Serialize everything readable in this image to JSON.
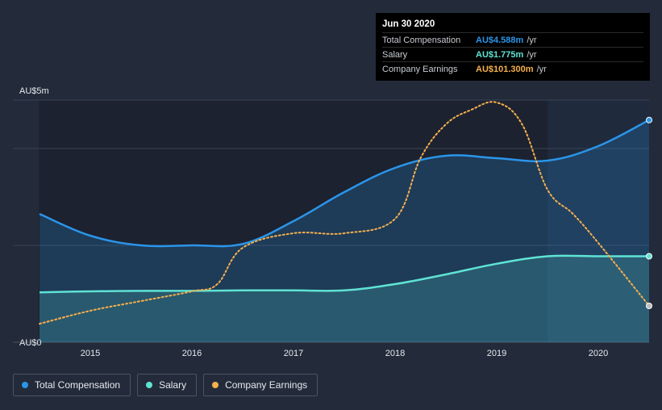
{
  "chart_data": {
    "type": "area",
    "x_ticks": [
      "2015",
      "2016",
      "2017",
      "2018",
      "2019",
      "2020"
    ],
    "y_ticks": [
      {
        "label": "AU$5m",
        "value": 5
      },
      {
        "label": "AU$0",
        "value": 0
      }
    ],
    "ylim": [
      0,
      5
    ],
    "grid": true,
    "series": [
      {
        "name": "Total Compensation",
        "color": "#2b95e9",
        "points": [
          [
            2014.5,
            2.65
          ],
          [
            2015.0,
            2.2
          ],
          [
            2015.5,
            2.0
          ],
          [
            2016.0,
            2.0
          ],
          [
            2016.5,
            2.03
          ],
          [
            2017.0,
            2.5
          ],
          [
            2017.5,
            3.1
          ],
          [
            2018.0,
            3.6
          ],
          [
            2018.5,
            3.85
          ],
          [
            2019.0,
            3.8
          ],
          [
            2019.5,
            3.75
          ],
          [
            2020.0,
            4.05
          ],
          [
            2020.5,
            4.588
          ]
        ]
      },
      {
        "name": "Salary",
        "color": "#5fe3d4",
        "points": [
          [
            2014.5,
            1.03
          ],
          [
            2015.0,
            1.05
          ],
          [
            2015.5,
            1.06
          ],
          [
            2016.0,
            1.06
          ],
          [
            2016.5,
            1.07
          ],
          [
            2017.0,
            1.07
          ],
          [
            2017.5,
            1.07
          ],
          [
            2018.0,
            1.2
          ],
          [
            2018.5,
            1.4
          ],
          [
            2019.0,
            1.62
          ],
          [
            2019.5,
            1.775
          ],
          [
            2020.0,
            1.775
          ],
          [
            2020.5,
            1.775
          ]
        ]
      },
      {
        "name": "Company Earnings",
        "color": "#f5b04d",
        "negative_color": "#e84a5f",
        "points": [
          [
            2014.5,
            0.38
          ],
          [
            2015.0,
            0.65
          ],
          [
            2015.5,
            0.85
          ],
          [
            2016.0,
            1.05
          ],
          [
            2016.25,
            1.2
          ],
          [
            2016.5,
            1.95
          ],
          [
            2017.0,
            2.25
          ],
          [
            2017.5,
            2.25
          ],
          [
            2018.0,
            2.55
          ],
          [
            2018.25,
            3.8
          ],
          [
            2018.5,
            4.5
          ],
          [
            2018.75,
            4.8
          ],
          [
            2019.0,
            4.95
          ],
          [
            2019.25,
            4.5
          ],
          [
            2019.5,
            3.15
          ],
          [
            2019.75,
            2.65
          ],
          [
            2020.0,
            2.05
          ],
          [
            2020.5,
            0.75
          ]
        ]
      }
    ],
    "highlight_from": 2019.5
  },
  "tooltip": {
    "date": "Jun 30 2020",
    "rows": [
      {
        "label": "Total Compensation",
        "value": "AU$4.588m",
        "unit": "/yr",
        "color": "#2b95e9"
      },
      {
        "label": "Salary",
        "value": "AU$1.775m",
        "unit": "/yr",
        "color": "#5fe3d4"
      },
      {
        "label": "Company Earnings",
        "value": "AU$101.300m",
        "unit": "/yr",
        "color": "#f5b04d"
      }
    ]
  },
  "legend": [
    {
      "label": "Total Compensation",
      "color": "#2b95e9"
    },
    {
      "label": "Salary",
      "color": "#5fe3d4"
    },
    {
      "label": "Company Earnings",
      "color": "#f5b04d"
    }
  ]
}
